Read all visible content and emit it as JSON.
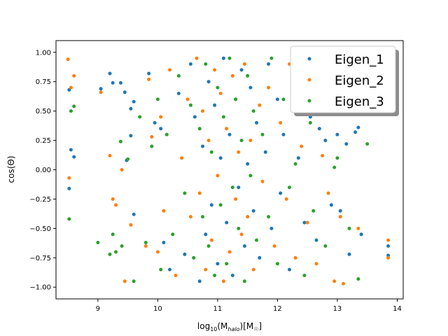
{
  "chart_data": {
    "type": "scatter",
    "title": "",
    "xlabel_parts": [
      "log",
      "10",
      "(M",
      "halo",
      ")[M",
      "☉",
      "]"
    ],
    "ylabel": "cos(Θ)",
    "xlim": [
      8.3,
      14.1
    ],
    "ylim": [
      -1.1,
      1.1
    ],
    "xticks": [
      9,
      10,
      11,
      12,
      13,
      14
    ],
    "xtick_labels": [
      "9",
      "10",
      "11",
      "12",
      "13",
      "14"
    ],
    "yticks": [
      -1.0,
      -0.75,
      -0.5,
      -0.25,
      0.0,
      0.25,
      0.5,
      0.75,
      1.0
    ],
    "ytick_labels": [
      "−1.00",
      "−0.75",
      "−0.50",
      "−0.25",
      "0.00",
      "0.25",
      "0.50",
      "0.75",
      "1.00"
    ],
    "grid": false,
    "legend_position": "upper-right",
    "series": [
      {
        "name": "Eigen_1",
        "color": "#1f77b4",
        "points": [
          [
            8.52,
            0.68
          ],
          [
            8.52,
            -0.16
          ],
          [
            8.55,
            0.17
          ],
          [
            8.6,
            0.11
          ],
          [
            9.05,
            0.69
          ],
          [
            9.2,
            0.82
          ],
          [
            9.25,
            0.74
          ],
          [
            9.38,
            0.74
          ],
          [
            9.45,
            0.66
          ],
          [
            9.55,
            0.52
          ],
          [
            9.6,
            0.58
          ],
          [
            9.55,
            0.29
          ],
          [
            9.48,
            0.08
          ],
          [
            9.6,
            -0.38
          ],
          [
            9.85,
            0.82
          ],
          [
            9.95,
            0.4
          ],
          [
            10.05,
            0.35
          ],
          [
            10.1,
            -0.62
          ],
          [
            10.2,
            -0.85
          ],
          [
            10.35,
            0.65
          ],
          [
            10.45,
            -0.72
          ],
          [
            10.55,
            0.9
          ],
          [
            10.62,
            0.45
          ],
          [
            10.7,
            -0.95
          ],
          [
            10.75,
            0.2
          ],
          [
            10.8,
            -0.55
          ],
          [
            10.85,
            0.75
          ],
          [
            10.9,
            -0.3
          ],
          [
            10.95,
            0.55
          ],
          [
            11.0,
            -0.8
          ],
          [
            11.05,
            0.1
          ],
          [
            11.1,
            0.95
          ],
          [
            11.15,
            -0.45
          ],
          [
            11.2,
            0.3
          ],
          [
            11.25,
            -0.9
          ],
          [
            11.3,
            0.6
          ],
          [
            11.35,
            -0.15
          ],
          [
            11.4,
            0.85
          ],
          [
            11.45,
            -0.65
          ],
          [
            11.5,
            0.05
          ],
          [
            11.55,
            0.7
          ],
          [
            11.6,
            -0.35
          ],
          [
            11.65,
            0.4
          ],
          [
            11.7,
            -0.75
          ],
          [
            11.8,
            0.15
          ],
          [
            11.85,
            0.9
          ],
          [
            11.9,
            -0.5
          ],
          [
            12.0,
            0.6
          ],
          [
            12.05,
            -0.2
          ],
          [
            12.1,
            0.3
          ],
          [
            12.2,
            -0.85
          ],
          [
            12.25,
            0.75
          ],
          [
            12.35,
            0.1
          ],
          [
            12.45,
            -0.45
          ],
          [
            12.55,
            0.45
          ],
          [
            12.65,
            -0.6
          ],
          [
            12.7,
            0.35
          ],
          [
            12.8,
            0.25
          ],
          [
            12.9,
            -0.3
          ],
          [
            13.0,
            0.3
          ],
          [
            13.05,
            -0.35
          ],
          [
            13.15,
            0.22
          ],
          [
            13.2,
            -0.72
          ],
          [
            13.3,
            0.32
          ],
          [
            13.35,
            0.36
          ],
          [
            13.4,
            -0.55
          ],
          [
            13.85,
            -0.65
          ],
          [
            13.85,
            -0.73
          ]
        ]
      },
      {
        "name": "Eigen_2",
        "color": "#ff7f0e",
        "points": [
          [
            8.5,
            0.94
          ],
          [
            8.52,
            -0.07
          ],
          [
            8.55,
            0.7
          ],
          [
            8.6,
            0.8
          ],
          [
            9.05,
            0.66
          ],
          [
            9.2,
            0.12
          ],
          [
            9.25,
            -0.25
          ],
          [
            9.3,
            -0.3
          ],
          [
            9.4,
            0.0
          ],
          [
            9.45,
            -0.95
          ],
          [
            9.55,
            -0.47
          ],
          [
            9.8,
            -0.65
          ],
          [
            9.85,
            0.77
          ],
          [
            9.9,
            0.28
          ],
          [
            10.0,
            -0.7
          ],
          [
            10.05,
            0.45
          ],
          [
            10.1,
            -0.35
          ],
          [
            10.2,
            0.85
          ],
          [
            10.3,
            -0.9
          ],
          [
            10.4,
            0.1
          ],
          [
            10.5,
            0.6
          ],
          [
            10.55,
            -0.4
          ],
          [
            10.65,
            0.95
          ],
          [
            10.7,
            -0.2
          ],
          [
            10.75,
            0.5
          ],
          [
            10.8,
            -0.85
          ],
          [
            10.85,
            0.25
          ],
          [
            10.9,
            -0.6
          ],
          [
            10.95,
            0.85
          ],
          [
            11.0,
            -0.05
          ],
          [
            11.05,
            0.65
          ],
          [
            11.1,
            -0.95
          ],
          [
            11.15,
            0.35
          ],
          [
            11.2,
            -0.7
          ],
          [
            11.25,
            0.8
          ],
          [
            11.3,
            -0.25
          ],
          [
            11.35,
            0.15
          ],
          [
            11.4,
            -0.55
          ],
          [
            11.45,
            0.9
          ],
          [
            11.5,
            -0.4
          ],
          [
            11.55,
            0.25
          ],
          [
            11.6,
            -0.85
          ],
          [
            11.7,
            0.55
          ],
          [
            11.75,
            -0.1
          ],
          [
            11.85,
            0.7
          ],
          [
            11.95,
            -0.65
          ],
          [
            12.05,
            0.4
          ],
          [
            12.15,
            -0.25
          ],
          [
            12.2,
            0.9
          ],
          [
            12.3,
            -0.75
          ],
          [
            12.4,
            0.2
          ],
          [
            12.5,
            -0.45
          ],
          [
            12.6,
            0.5
          ],
          [
            12.65,
            -0.8
          ],
          [
            12.75,
            0.12
          ],
          [
            12.85,
            -0.2
          ],
          [
            12.95,
            -0.95
          ],
          [
            13.05,
            -0.4
          ],
          [
            13.1,
            -0.97
          ],
          [
            13.35,
            -0.5
          ],
          [
            13.85,
            -0.6
          ],
          [
            13.85,
            -0.75
          ]
        ]
      },
      {
        "name": "Eigen_3",
        "color": "#2ca02c",
        "points": [
          [
            8.52,
            -0.42
          ],
          [
            8.55,
            0.5
          ],
          [
            8.6,
            0.54
          ],
          [
            9.0,
            -0.62
          ],
          [
            9.2,
            -0.72
          ],
          [
            9.25,
            -0.55
          ],
          [
            9.3,
            -0.7
          ],
          [
            9.38,
            0.24
          ],
          [
            9.4,
            -0.65
          ],
          [
            9.5,
            0.09
          ],
          [
            9.6,
            -0.95
          ],
          [
            9.7,
            0.45
          ],
          [
            9.8,
            -0.62
          ],
          [
            9.9,
            0.2
          ],
          [
            10.0,
            0.6
          ],
          [
            10.05,
            -0.85
          ],
          [
            10.15,
            0.3
          ],
          [
            10.25,
            -0.55
          ],
          [
            10.35,
            0.8
          ],
          [
            10.45,
            -0.2
          ],
          [
            10.55,
            0.55
          ],
          [
            10.6,
            -0.75
          ],
          [
            10.7,
            0.35
          ],
          [
            10.75,
            -0.4
          ],
          [
            10.8,
            0.9
          ],
          [
            10.85,
            -0.65
          ],
          [
            10.9,
            0.15
          ],
          [
            10.95,
            -0.9
          ],
          [
            11.0,
            0.7
          ],
          [
            11.05,
            -0.3
          ],
          [
            11.1,
            0.45
          ],
          [
            11.15,
            -0.8
          ],
          [
            11.2,
            0.95
          ],
          [
            11.25,
            -0.15
          ],
          [
            11.3,
            0.6
          ],
          [
            11.35,
            -0.5
          ],
          [
            11.4,
            0.25
          ],
          [
            11.45,
            -0.95
          ],
          [
            11.5,
            0.8
          ],
          [
            11.55,
            -0.05
          ],
          [
            11.6,
            0.5
          ],
          [
            11.65,
            -0.6
          ],
          [
            11.75,
            0.3
          ],
          [
            11.85,
            -0.4
          ],
          [
            11.9,
            0.95
          ],
          [
            12.0,
            -0.8
          ],
          [
            12.1,
            0.6
          ],
          [
            12.2,
            -0.15
          ],
          [
            12.3,
            0.05
          ],
          [
            12.45,
            -0.9
          ],
          [
            12.55,
            0.4
          ],
          [
            12.6,
            -0.35
          ],
          [
            12.7,
            0.55
          ],
          [
            12.8,
            -0.65
          ],
          [
            12.95,
            0.02
          ],
          [
            13.0,
            0.1
          ],
          [
            13.2,
            -0.5
          ],
          [
            13.35,
            -0.93
          ],
          [
            13.5,
            0.22
          ]
        ]
      }
    ]
  }
}
